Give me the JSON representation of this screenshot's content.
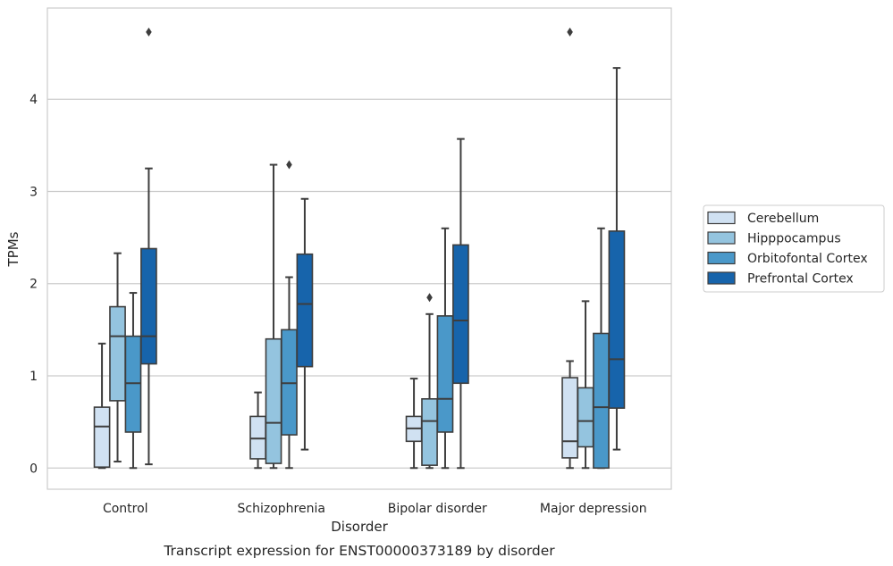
{
  "chart_data": {
    "type": "box",
    "caption": "Transcript expression for ENST00000373189 by disorder",
    "xlabel": "Disorder",
    "ylabel": "TPMs",
    "ylim": [
      -0.23,
      4.99
    ],
    "yticks": [
      0,
      1,
      2,
      3,
      4
    ],
    "grid": "horizontal",
    "legend_position": "right",
    "categories": [
      "Control",
      "Schizophrenia",
      "Bipolar disorder",
      "Major depression"
    ],
    "series": [
      {
        "name": "Cerebellum",
        "color": "#d0e1f2",
        "boxes": [
          {
            "min": 0.0,
            "q1": 0.01,
            "median": 0.45,
            "q3": 0.66,
            "max": 1.35,
            "outliers": []
          },
          {
            "min": 0.0,
            "q1": 0.1,
            "median": 0.32,
            "q3": 0.56,
            "max": 0.82,
            "outliers": []
          },
          {
            "min": 0.0,
            "q1": 0.29,
            "median": 0.43,
            "q3": 0.56,
            "max": 0.97,
            "outliers": []
          },
          {
            "min": 0.0,
            "q1": 0.11,
            "median": 0.29,
            "q3": 0.98,
            "max": 1.16,
            "outliers": [
              4.73
            ]
          }
        ]
      },
      {
        "name": "Hipppocampus",
        "color": "#94c4df",
        "boxes": [
          {
            "min": 0.07,
            "q1": 0.73,
            "median": 1.43,
            "q3": 1.75,
            "max": 2.33,
            "outliers": []
          },
          {
            "min": 0.0,
            "q1": 0.05,
            "median": 0.49,
            "q3": 1.4,
            "max": 3.29,
            "outliers": []
          },
          {
            "min": 0.0,
            "q1": 0.03,
            "median": 0.51,
            "q3": 0.75,
            "max": 1.67,
            "outliers": [
              1.85
            ]
          },
          {
            "min": 0.0,
            "q1": 0.23,
            "median": 0.51,
            "q3": 0.87,
            "max": 1.81,
            "outliers": []
          }
        ]
      },
      {
        "name": "Orbitofontal Cortex",
        "color": "#4a98c9",
        "boxes": [
          {
            "min": 0.0,
            "q1": 0.39,
            "median": 0.92,
            "q3": 1.43,
            "max": 1.9,
            "outliers": []
          },
          {
            "min": 0.0,
            "q1": 0.36,
            "median": 0.92,
            "q3": 1.5,
            "max": 2.07,
            "outliers": [
              3.29
            ]
          },
          {
            "min": 0.0,
            "q1": 0.39,
            "median": 0.75,
            "q3": 1.65,
            "max": 2.6,
            "outliers": []
          },
          {
            "min": 0.0,
            "q1": 0.0,
            "median": 0.66,
            "q3": 1.46,
            "max": 2.6,
            "outliers": []
          }
        ]
      },
      {
        "name": "Prefrontal Cortex",
        "color": "#1764ab",
        "boxes": [
          {
            "min": 0.04,
            "q1": 1.13,
            "median": 1.43,
            "q3": 2.38,
            "max": 3.25,
            "outliers": [
              4.73
            ]
          },
          {
            "min": 0.2,
            "q1": 1.1,
            "median": 1.78,
            "q3": 2.32,
            "max": 2.92,
            "outliers": []
          },
          {
            "min": 0.0,
            "q1": 0.92,
            "median": 1.6,
            "q3": 2.42,
            "max": 3.57,
            "outliers": []
          },
          {
            "min": 0.2,
            "q1": 0.65,
            "median": 1.18,
            "q3": 2.57,
            "max": 4.34,
            "outliers": []
          }
        ]
      }
    ]
  }
}
